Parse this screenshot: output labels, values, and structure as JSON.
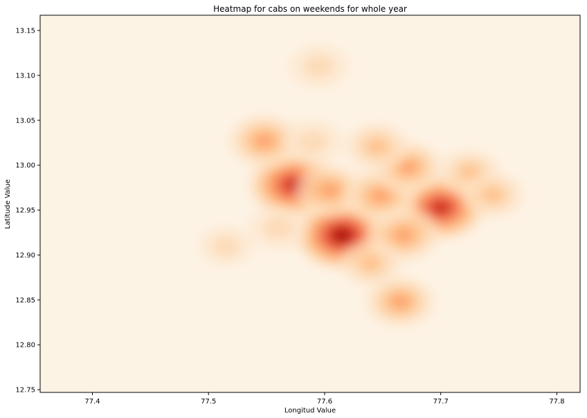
{
  "chart_data": {
    "type": "heatmap",
    "title": "Heatmap for cabs on weekends for whole year",
    "xlabel": "Longitud Value",
    "ylabel": "Latitude Value",
    "xlim": [
      77.355,
      77.82
    ],
    "ylim": [
      12.747,
      13.167
    ],
    "xticks": [
      {
        "value": 77.4,
        "label": "77.4"
      },
      {
        "value": 77.5,
        "label": "77.5"
      },
      {
        "value": 77.6,
        "label": "77.6"
      },
      {
        "value": 77.7,
        "label": "77.7"
      },
      {
        "value": 77.8,
        "label": "77.8"
      }
    ],
    "yticks": [
      {
        "value": 12.75,
        "label": "12.75"
      },
      {
        "value": 12.8,
        "label": "12.80"
      },
      {
        "value": 12.85,
        "label": "12.85"
      },
      {
        "value": 12.9,
        "label": "12.90"
      },
      {
        "value": 12.95,
        "label": "12.95"
      },
      {
        "value": 13.0,
        "label": "13.00"
      },
      {
        "value": 13.05,
        "label": "13.05"
      },
      {
        "value": 13.1,
        "label": "13.10"
      },
      {
        "value": 13.15,
        "label": "13.15"
      }
    ],
    "colormap": [
      "#fff5e8",
      "#fee4c8",
      "#fdd0a2",
      "#fdae6b",
      "#fc8d59",
      "#ef6548",
      "#d7301f",
      "#b30000",
      "#7f0000"
    ],
    "background_color": "#fdf3e5",
    "grid": false,
    "hotspots": [
      {
        "lon": 77.615,
        "lat": 12.922,
        "weight": 1.0
      },
      {
        "lon": 77.7,
        "lat": 12.953,
        "weight": 0.9
      },
      {
        "lon": 77.573,
        "lat": 12.978,
        "weight": 0.9
      },
      {
        "lon": 77.548,
        "lat": 13.027,
        "weight": 0.55
      },
      {
        "lon": 77.605,
        "lat": 12.972,
        "weight": 0.5
      },
      {
        "lon": 77.648,
        "lat": 12.966,
        "weight": 0.55
      },
      {
        "lon": 77.672,
        "lat": 12.998,
        "weight": 0.5
      },
      {
        "lon": 77.668,
        "lat": 12.922,
        "weight": 0.55
      },
      {
        "lon": 77.665,
        "lat": 12.848,
        "weight": 0.5
      },
      {
        "lon": 77.645,
        "lat": 13.021,
        "weight": 0.4
      },
      {
        "lon": 77.725,
        "lat": 12.992,
        "weight": 0.35
      },
      {
        "lon": 77.745,
        "lat": 12.967,
        "weight": 0.35
      },
      {
        "lon": 77.56,
        "lat": 12.93,
        "weight": 0.3
      },
      {
        "lon": 77.595,
        "lat": 13.11,
        "weight": 0.3
      },
      {
        "lon": 77.59,
        "lat": 13.026,
        "weight": 0.3
      },
      {
        "lon": 77.515,
        "lat": 12.91,
        "weight": 0.2
      },
      {
        "lon": 77.64,
        "lat": 12.89,
        "weight": 0.35
      }
    ]
  }
}
